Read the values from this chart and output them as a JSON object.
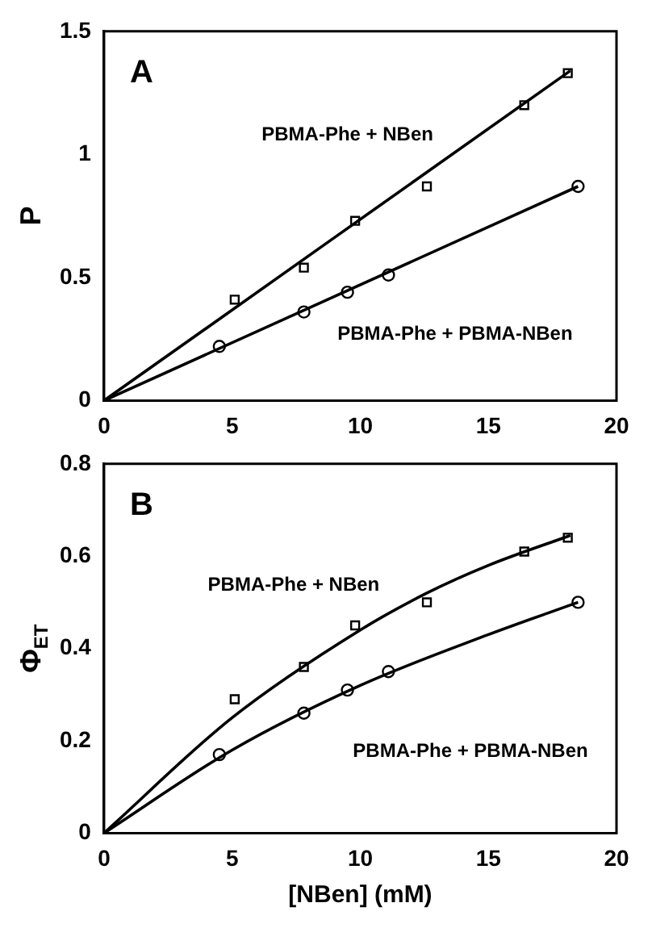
{
  "chart_data": [
    {
      "type": "scatter",
      "ylabel": "P",
      "annotations": [
        "A"
      ],
      "xlim": [
        0,
        20
      ],
      "xticks": [
        0,
        5,
        10,
        15,
        20
      ],
      "ylim": [
        0,
        1.5
      ],
      "yticks": [
        0,
        0.5,
        1,
        1.5
      ],
      "grid": false,
      "legend": false,
      "series": [
        {
          "name": "PBMA-Phe + NBen",
          "color": "#000000",
          "marker": "square",
          "x": [
            5.1,
            7.8,
            9.8,
            12.6,
            16.4,
            18.1
          ],
          "values": [
            0.41,
            0.54,
            0.73,
            0.87,
            1.2,
            1.33
          ]
        },
        {
          "name": "PBMA-Phe + PBMA-NBen",
          "color": "#000000",
          "marker": "circle",
          "x": [
            4.5,
            7.8,
            9.5,
            11.1,
            18.5
          ],
          "values": [
            0.22,
            0.36,
            0.44,
            0.51,
            0.87
          ]
        },
        {
          "type": "line",
          "color": "#000000",
          "marker": "none",
          "x": [
            0,
            18.2
          ],
          "values": [
            0,
            1.34
          ]
        },
        {
          "type": "line",
          "color": "#000000",
          "marker": "none",
          "x": [
            0,
            18.5
          ],
          "values": [
            0,
            0.87
          ]
        }
      ]
    },
    {
      "type": "scatter",
      "xlabel": "[NBen] (mM)",
      "ylabel": "Φ$_{ET}$",
      "annotations": [
        "B"
      ],
      "xlim": [
        0,
        20
      ],
      "xticks": [
        0,
        5,
        10,
        15,
        20
      ],
      "ylim": [
        0,
        0.8
      ],
      "yticks": [
        0,
        0.2,
        0.4,
        0.6,
        0.8
      ],
      "grid": false,
      "legend": false,
      "series": [
        {
          "name": "PBMA-Phe + NBen",
          "color": "#000000",
          "marker": "square",
          "x": [
            5.1,
            7.8,
            9.8,
            12.6,
            16.4,
            18.1
          ],
          "values": [
            0.29,
            0.36,
            0.45,
            0.5,
            0.61,
            0.64
          ]
        },
        {
          "name": "PBMA-Phe + PBMA-NBen",
          "color": "#000000",
          "marker": "circle",
          "x": [
            4.5,
            7.8,
            9.5,
            11.1,
            18.5
          ],
          "values": [
            0.17,
            0.26,
            0.31,
            0.35,
            0.5
          ]
        },
        {
          "type": "line",
          "color": "#000000",
          "marker": "none",
          "x": [
            0,
            5,
            10,
            12.6,
            15,
            18.2
          ],
          "values": [
            0,
            0.25,
            0.44,
            0.52,
            0.58,
            0.645
          ]
        },
        {
          "type": "line",
          "color": "#000000",
          "marker": "none",
          "x": [
            0,
            5,
            10,
            15,
            18.5
          ],
          "values": [
            0,
            0.18,
            0.32,
            0.43,
            0.5
          ]
        }
      ]
    }
  ]
}
